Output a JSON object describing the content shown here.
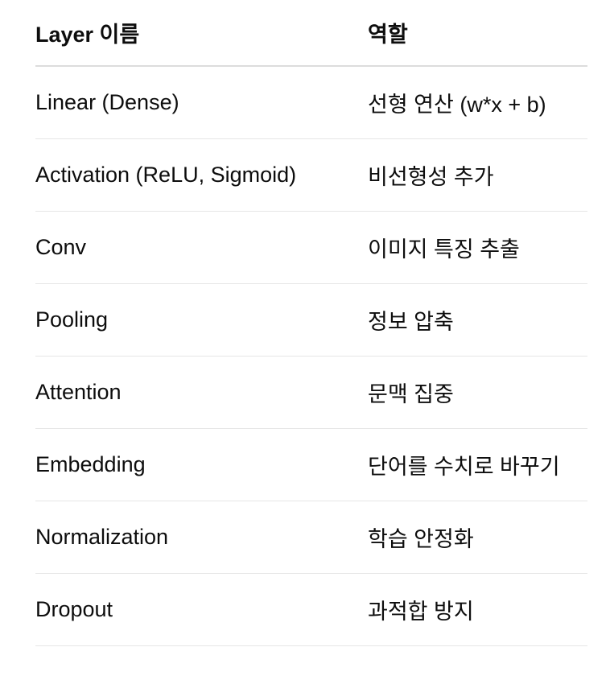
{
  "table": {
    "headers": [
      "Layer 이름",
      "역할"
    ],
    "rows": [
      [
        "Linear (Dense)",
        "선형 연산 (w*x + b)"
      ],
      [
        "Activation (ReLU, Sigmoid)",
        "비선형성 추가"
      ],
      [
        "Conv",
        "이미지 특징 추출"
      ],
      [
        "Pooling",
        "정보 압축"
      ],
      [
        "Attention",
        "문맥 집중"
      ],
      [
        "Embedding",
        "단어를 수치로 바꾸기"
      ],
      [
        "Normalization",
        "학습 안정화"
      ],
      [
        "Dropout",
        "과적합 방지"
      ]
    ]
  }
}
